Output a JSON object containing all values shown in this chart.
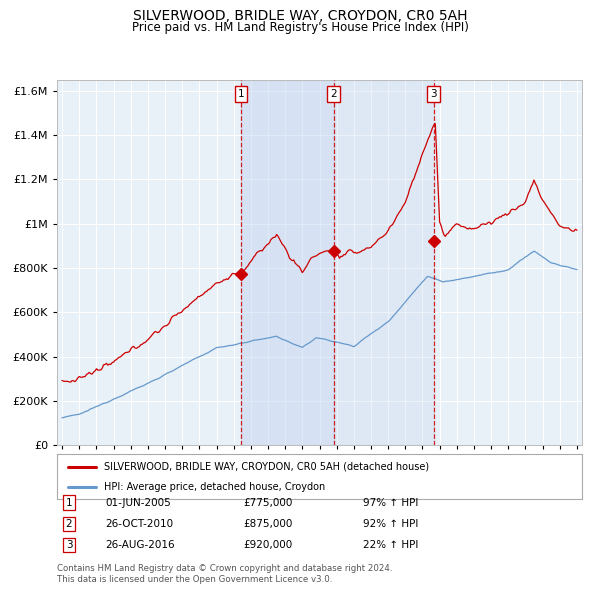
{
  "title": "SILVERWOOD, BRIDLE WAY, CROYDON, CR0 5AH",
  "subtitle": "Price paid vs. HM Land Registry's House Price Index (HPI)",
  "footer1": "Contains HM Land Registry data © Crown copyright and database right 2024.",
  "footer2": "This data is licensed under the Open Government Licence v3.0.",
  "legend_red": "SILVERWOOD, BRIDLE WAY, CROYDON, CR0 5AH (detached house)",
  "legend_blue": "HPI: Average price, detached house, Croydon",
  "transactions": [
    {
      "num": 1,
      "date": "01-JUN-2005",
      "price": 775000,
      "pct": "97%",
      "dir": "↑"
    },
    {
      "num": 2,
      "date": "26-OCT-2010",
      "price": 875000,
      "pct": "92%",
      "dir": "↑"
    },
    {
      "num": 3,
      "date": "26-AUG-2016",
      "price": 920000,
      "pct": "22%",
      "dir": "↑"
    }
  ],
  "transaction_years": [
    2005.42,
    2010.82,
    2016.65
  ],
  "ylim": [
    0,
    1650000
  ],
  "yticks": [
    0,
    200000,
    400000,
    600000,
    800000,
    1000000,
    1200000,
    1400000,
    1600000
  ],
  "xlim_start": 1994.7,
  "xlim_end": 2025.3,
  "plot_bg": "#e8f0f8",
  "red_color": "#cc0000",
  "blue_color": "#6699cc",
  "marker_color": "#cc0000",
  "vline_color": "#cc0000",
  "shade_color": "#c8d8f0",
  "grid_color": "#ffffff"
}
